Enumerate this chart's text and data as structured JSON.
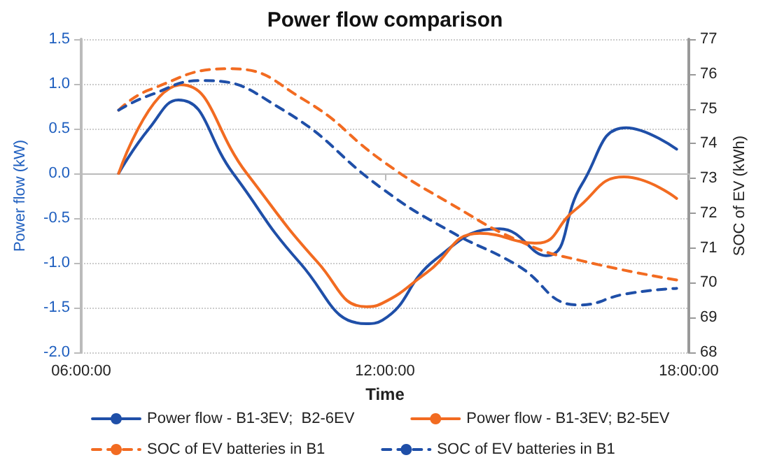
{
  "chart_data": {
    "type": "line",
    "title": "Power flow comparison",
    "xlabel": "Time",
    "ylabel": "Power flow (kW)",
    "y2label": "SOC of EV (kWh)",
    "xlim": [
      6,
      18
    ],
    "xticks": [
      {
        "value": 6,
        "label": "06:00:00"
      },
      {
        "value": 12,
        "label": "12:00:00"
      },
      {
        "value": 18,
        "label": "18:00:00"
      }
    ],
    "ylim": [
      -2,
      1.5
    ],
    "yticks": [
      {
        "value": -2,
        "label": "-2.0"
      },
      {
        "value": -1.5,
        "label": "-1.5"
      },
      {
        "value": -1,
        "label": "-1.0"
      },
      {
        "value": -0.5,
        "label": "-0.5"
      },
      {
        "value": 0,
        "label": "0.0"
      },
      {
        "value": 0.5,
        "label": "0.5"
      },
      {
        "value": 1,
        "label": "1.0"
      },
      {
        "value": 1.5,
        "label": "1.5"
      }
    ],
    "y2lim": [
      68,
      77
    ],
    "y2ticks": [
      68,
      69,
      70,
      71,
      72,
      73,
      74,
      75,
      76,
      77
    ],
    "grid": "y",
    "legend": "bottom",
    "series": [
      {
        "name": "Power flow - B1-3EV;  B2-6EV",
        "color": "#1f4fa8",
        "line_style": "solid",
        "x": [
          6.74,
          7.34,
          7.92,
          9.0,
          10.32,
          11.63,
          11.95,
          13.0,
          14.26,
          15.18,
          15.89,
          16.76,
          17.76
        ],
        "values": [
          0,
          0.5,
          0.82,
          0,
          -1.0,
          -1.68,
          -1.64,
          -0.96,
          -0.62,
          -0.92,
          -0.12,
          0.51,
          0.27
        ]
      },
      {
        "name": "Power flow - B1-3EV; B2-5EV",
        "color": "#f26b21",
        "line_style": "solid",
        "x": [
          6.74,
          7.97,
          9.27,
          10.68,
          11.63,
          11.95,
          12.82,
          13.87,
          14.99,
          15.75,
          16.72,
          17.76
        ],
        "values": [
          0,
          0.99,
          0,
          -1.0,
          -1.49,
          -1.45,
          -1.11,
          -0.67,
          -0.78,
          -0.41,
          -0.04,
          -0.28
        ]
      },
      {
        "name": "SOC of EV batteries in B1",
        "color": "#f26b21",
        "line_style": "dashed",
        "axis": "y2",
        "x": [
          6.74,
          7.34,
          8.92,
          10.41,
          11.95,
          13.26,
          14.76,
          15.89,
          17.76
        ],
        "values": [
          74.96,
          75.54,
          76.15,
          75.25,
          73.5,
          72.3,
          71.13,
          70.63,
          70.08
        ]
      },
      {
        "name": "SOC of EV batteries in B1",
        "color": "#1f4fa8",
        "line_style": "dashed",
        "axis": "y2",
        "x": [
          6.74,
          7.34,
          8.39,
          9.97,
          11.95,
          13.26,
          14.58,
          15.84,
          16.76,
          17.76
        ],
        "values": [
          74.96,
          75.38,
          75.81,
          74.98,
          72.7,
          71.5,
          70.53,
          69.36,
          69.68,
          69.84
        ]
      }
    ]
  }
}
